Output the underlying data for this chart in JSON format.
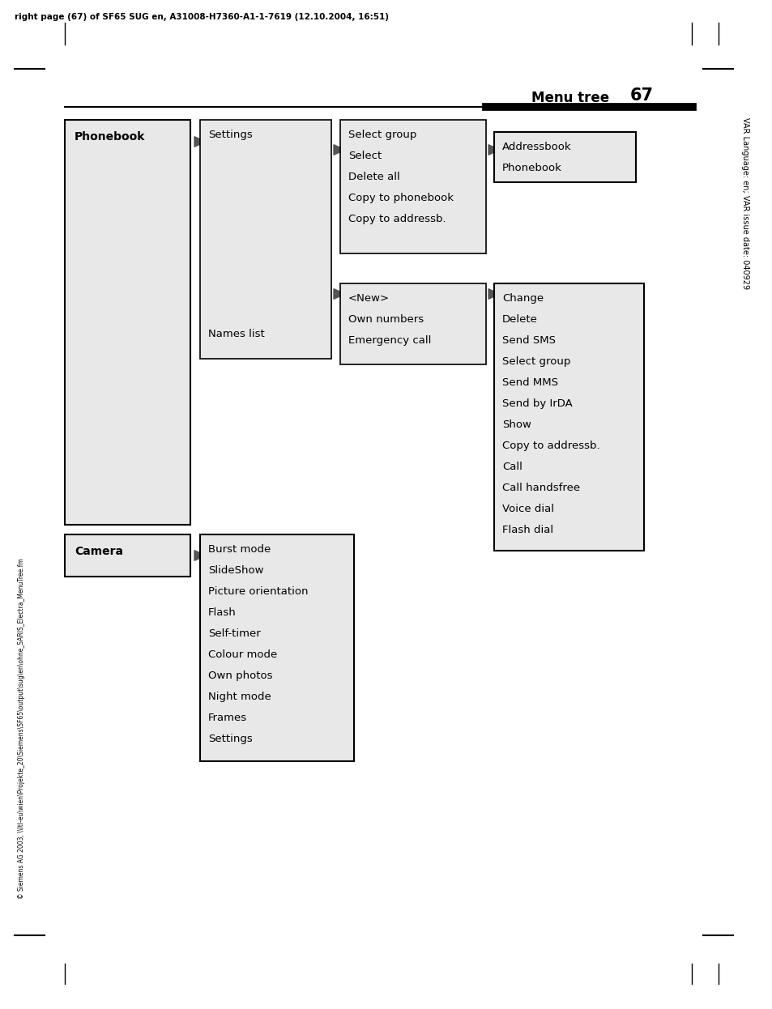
{
  "page_width": 9.54,
  "page_height": 12.46,
  "bg_color": "#ffffff",
  "header_text": "right page (67) of SF65 SUG en, A31008-H7360-A1-1-7619 (12.10.2004, 16:51)",
  "menu_tree_label": "Menu tree",
  "page_number": "67",
  "box_fill": "#e8e8e8",
  "sidebar_right": "VAR Language: en; VAR issue date: 040929",
  "sidebar_left": "© Siemens AG 2003, \\\\ltl-eu\\wien\\Projekte_20\\Siemens\\SF65\\output\\sug\\en\\ohne_SARIS_Electra_MenuTree.fm"
}
